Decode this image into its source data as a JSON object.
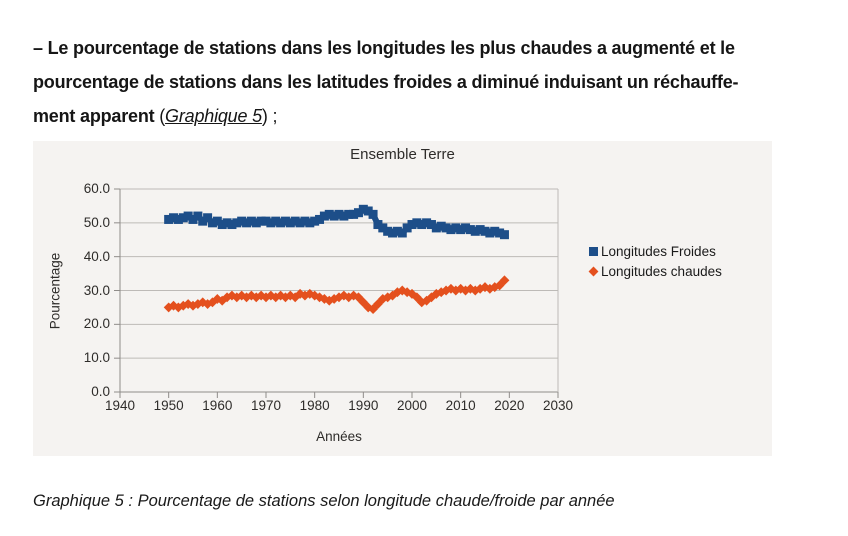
{
  "page": {
    "paragraph": {
      "line1": "– Le pourcentage de stations dans les longitudes les plus chaudes a augmenté et le",
      "line2": "pourcentage de stations dans les latitudes froides a diminué induisant un réchauffe-",
      "line3_bold": "ment apparent",
      "line3_pre": " (",
      "line3_link": "Graphique 5",
      "line3_post": ") ;"
    },
    "caption": "Graphique 5 : Pourcentage de stations selon longitude chaude/froide par année"
  },
  "chart_data": {
    "type": "line",
    "title": "Ensemble Terre",
    "xlabel": "Années",
    "ylabel": "Pourcentage",
    "xlim": [
      1940,
      2030
    ],
    "ylim": [
      0,
      60
    ],
    "grid": true,
    "legend_position": "right",
    "background": "#f5f3f1",
    "gridline_color": "#bdbab7",
    "axis_color": "#8f8c89",
    "x_ticks": [
      "1940",
      "1950",
      "1960",
      "1970",
      "1980",
      "1990",
      "2000",
      "2010",
      "2020",
      "2030"
    ],
    "y_ticks": [
      "0.0",
      "10.0",
      "20.0",
      "30.0",
      "40.0",
      "50.0",
      "60.0"
    ],
    "years": [
      1950,
      1951,
      1952,
      1953,
      1954,
      1955,
      1956,
      1957,
      1958,
      1959,
      1960,
      1961,
      1962,
      1963,
      1964,
      1965,
      1966,
      1967,
      1968,
      1969,
      1970,
      1971,
      1972,
      1973,
      1974,
      1975,
      1976,
      1977,
      1978,
      1979,
      1980,
      1981,
      1982,
      1983,
      1984,
      1985,
      1986,
      1987,
      1988,
      1989,
      1990,
      1991,
      1992,
      1993,
      1994,
      1995,
      1996,
      1997,
      1998,
      1999,
      2000,
      2001,
      2002,
      2003,
      2004,
      2005,
      2006,
      2007,
      2008,
      2009,
      2010,
      2011,
      2012,
      2013,
      2014,
      2015,
      2016,
      2017,
      2018,
      2019
    ],
    "series": [
      {
        "name": "Longitudes Froides",
        "color": "#1d4e89",
        "marker": "square",
        "values": [
          51,
          51.5,
          51,
          51.5,
          52,
          51,
          52,
          50.5,
          51.5,
          50,
          50.5,
          49.5,
          50,
          49.5,
          50,
          50.5,
          50,
          50.5,
          50,
          50.5,
          50.5,
          50,
          50.5,
          50,
          50.5,
          50,
          50.5,
          50,
          50.5,
          50,
          50.5,
          51,
          52,
          52.5,
          52,
          52.5,
          52,
          52.5,
          52.5,
          53,
          54,
          53.5,
          52.5,
          49.5,
          48.5,
          47.5,
          47,
          47.5,
          47,
          48.5,
          49.5,
          50,
          49.5,
          50,
          49.5,
          48.5,
          49,
          48.5,
          48,
          48.5,
          48,
          48.5,
          48,
          47.5,
          48,
          47.5,
          47,
          47.5,
          47,
          46.5
        ]
      },
      {
        "name": "Longitudes chaudes",
        "color": "#e4501e",
        "marker": "diamond",
        "values": [
          25,
          25.5,
          25,
          25.5,
          26,
          25.5,
          26,
          26.5,
          26,
          26.5,
          27.5,
          27,
          28,
          28.5,
          28,
          28.5,
          28,
          28.5,
          28,
          28.5,
          28,
          28.5,
          28,
          28.5,
          28,
          28.5,
          28,
          29,
          28.5,
          29,
          28.5,
          28,
          27.5,
          27,
          27.5,
          28,
          28.5,
          28,
          28.5,
          28,
          26.5,
          25,
          24.5,
          26,
          27.5,
          28,
          28.5,
          29.5,
          30,
          29.5,
          29,
          28,
          26.5,
          27,
          28,
          29,
          29.5,
          30,
          30.5,
          30,
          30.5,
          30,
          30.5,
          30,
          30.5,
          31,
          30.5,
          31,
          31.5,
          33
        ]
      }
    ]
  }
}
